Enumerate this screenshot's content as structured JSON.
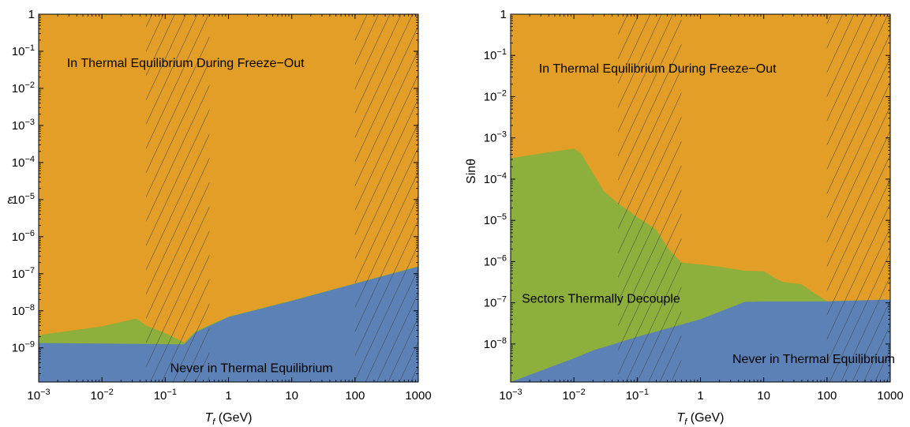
{
  "colors": {
    "orange": "#E29E26",
    "green": "#8DB03C",
    "blue": "#5B81B6",
    "hatch": "#444444",
    "frame": "#000000"
  },
  "chart_data": [
    {
      "type": "area",
      "xscale": "log",
      "yscale": "log",
      "xlim": [
        0.001,
        1000
      ],
      "ylim": [
        1.2e-10,
        1
      ],
      "xlabel_italic": "T",
      "xlabel_sub": "f",
      "xlabel_rest": " (GeV)",
      "ylabel": "ε",
      "xticks": [
        {
          "value": 0.001,
          "base": "10",
          "exp": "−3"
        },
        {
          "value": 0.01,
          "base": "10",
          "exp": "−2"
        },
        {
          "value": 0.1,
          "base": "10",
          "exp": "−1"
        },
        {
          "value": 1,
          "base": "1",
          "exp": ""
        },
        {
          "value": 10,
          "base": "10",
          "exp": ""
        },
        {
          "value": 100,
          "base": "100",
          "exp": ""
        },
        {
          "value": 1000,
          "base": "1000",
          "exp": ""
        }
      ],
      "yticks": [
        {
          "value": 1,
          "base": "1",
          "exp": ""
        },
        {
          "value": 0.1,
          "base": "10",
          "exp": "−1"
        },
        {
          "value": 0.01,
          "base": "10",
          "exp": "−2"
        },
        {
          "value": 0.001,
          "base": "10",
          "exp": "−3"
        },
        {
          "value": 0.0001,
          "base": "10",
          "exp": "−4"
        },
        {
          "value": 1e-05,
          "base": "10",
          "exp": "−5"
        },
        {
          "value": 1e-06,
          "base": "10",
          "exp": "−6"
        },
        {
          "value": 1e-07,
          "base": "10",
          "exp": "−7"
        },
        {
          "value": 1e-08,
          "base": "10",
          "exp": "−8"
        },
        {
          "value": 1e-09,
          "base": "10",
          "exp": "−9"
        }
      ],
      "green_upper": [
        [
          0.001,
          2.2e-09
        ],
        [
          0.01,
          3.8e-09
        ],
        [
          0.035,
          6.2e-09
        ],
        [
          0.05,
          4e-09
        ],
        [
          0.1,
          2.5e-09
        ],
        [
          0.2,
          1.4e-09
        ],
        [
          0.3,
          2.8e-09
        ],
        [
          1,
          7e-09
        ],
        [
          10,
          1.9e-08
        ],
        [
          100,
          5.5e-08
        ],
        [
          1000,
          1.6e-07
        ]
      ],
      "blue_upper": [
        [
          0.001,
          1.35e-09
        ],
        [
          0.2,
          1.25e-09
        ],
        [
          0.3,
          2.6e-09
        ],
        [
          1,
          6.8e-09
        ],
        [
          10,
          1.85e-08
        ],
        [
          100,
          5.4e-08
        ],
        [
          1000,
          1.55e-07
        ]
      ],
      "hatch_bands": [
        [
          0.05,
          0.5
        ],
        [
          100,
          1000
        ]
      ],
      "regions": [
        {
          "label": "In Thermal Equilibrium During Freeze−Out",
          "x": 0.0028,
          "y": 0.05
        },
        {
          "label": "Never in Thermal Equilibrium",
          "x": 0.12,
          "y": 3e-10
        }
      ]
    },
    {
      "type": "area",
      "xscale": "log",
      "yscale": "log",
      "xlim": [
        0.001,
        1000
      ],
      "ylim": [
        1.2e-09,
        1
      ],
      "xlabel_italic": "T",
      "xlabel_sub": "f",
      "xlabel_rest": " (GeV)",
      "ylabel": "Sinθ",
      "xticks": [
        {
          "value": 0.001,
          "base": "10",
          "exp": "−3"
        },
        {
          "value": 0.01,
          "base": "10",
          "exp": "−2"
        },
        {
          "value": 0.1,
          "base": "10",
          "exp": "−1"
        },
        {
          "value": 1,
          "base": "1",
          "exp": ""
        },
        {
          "value": 10,
          "base": "10",
          "exp": ""
        },
        {
          "value": 100,
          "base": "100",
          "exp": ""
        },
        {
          "value": 1000,
          "base": "1000",
          "exp": ""
        }
      ],
      "yticks": [
        {
          "value": 1,
          "base": "1",
          "exp": ""
        },
        {
          "value": 0.1,
          "base": "10",
          "exp": "−1"
        },
        {
          "value": 0.01,
          "base": "10",
          "exp": "−2"
        },
        {
          "value": 0.001,
          "base": "10",
          "exp": "−3"
        },
        {
          "value": 0.0001,
          "base": "10",
          "exp": "−4"
        },
        {
          "value": 1e-05,
          "base": "10",
          "exp": "−5"
        },
        {
          "value": 1e-06,
          "base": "10",
          "exp": "−6"
        },
        {
          "value": 1e-07,
          "base": "10",
          "exp": "−7"
        },
        {
          "value": 1e-08,
          "base": "10",
          "exp": "−8"
        }
      ],
      "green_upper": [
        [
          0.001,
          0.00032
        ],
        [
          0.004,
          0.00045
        ],
        [
          0.01,
          0.00055
        ],
        [
          0.013,
          0.00042
        ],
        [
          0.02,
          0.00014
        ],
        [
          0.03,
          5e-05
        ],
        [
          0.05,
          2.6e-05
        ],
        [
          0.1,
          1.2e-05
        ],
        [
          0.2,
          6e-06
        ],
        [
          0.3,
          2.2e-06
        ],
        [
          0.5,
          9.5e-07
        ],
        [
          1,
          8.5e-07
        ],
        [
          2,
          7.5e-07
        ],
        [
          5,
          6e-07
        ],
        [
          10,
          5.8e-07
        ],
        [
          15,
          4e-07
        ],
        [
          20,
          3.2e-07
        ],
        [
          40,
          2.8e-07
        ],
        [
          60,
          1.8e-07
        ],
        [
          100,
          1.1e-07
        ],
        [
          1000,
          1.2e-07
        ]
      ],
      "blue_upper": [
        [
          0.001,
          1.2e-09
        ],
        [
          0.01,
          4.5e-09
        ],
        [
          0.02,
          7e-09
        ],
        [
          0.1,
          1.5e-08
        ],
        [
          1,
          4e-08
        ],
        [
          5,
          1.05e-07
        ],
        [
          10,
          1.08e-07
        ],
        [
          100,
          1.08e-07
        ],
        [
          1000,
          1.2e-07
        ]
      ],
      "hatch_bands": [
        [
          0.05,
          0.5
        ],
        [
          100,
          1000
        ]
      ],
      "regions": [
        {
          "label": "In Thermal Equilibrium During Freeze−Out",
          "x": 0.0028,
          "y": 0.05
        },
        {
          "label": "Sectors Thermally Decouple",
          "x": 0.0015,
          "y": 1.3e-07
        },
        {
          "label": "Never in Thermal Equilibrium",
          "x": 3.2,
          "y": 4.5e-09
        }
      ]
    }
  ]
}
